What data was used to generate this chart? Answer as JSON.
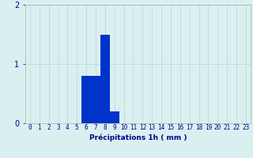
{
  "values": [
    0,
    0,
    0,
    0,
    0,
    0,
    0.8,
    0.8,
    1.5,
    0.2,
    0,
    0,
    0,
    0,
    0,
    0,
    0,
    0,
    0,
    0,
    0,
    0,
    0,
    0
  ],
  "x_labels": [
    "0",
    "1",
    "2",
    "3",
    "4",
    "5",
    "6",
    "7",
    "8",
    "9",
    "10",
    "11",
    "12",
    "13",
    "14",
    "15",
    "16",
    "17",
    "18",
    "19",
    "20",
    "21",
    "22",
    "23"
  ],
  "xlabel": "Précipitations 1h ( mm )",
  "ylim": [
    0,
    2
  ],
  "yticks": [
    0,
    1,
    2
  ],
  "bar_color": "#0033cc",
  "background_color": "#daf0f0",
  "grid_color": "#b8d4d4",
  "axis_color": "#555555",
  "label_color": "#00008b",
  "xlabel_fontsize": 6.5,
  "tick_fontsize": 5.5,
  "ytick_fontsize": 7.0
}
